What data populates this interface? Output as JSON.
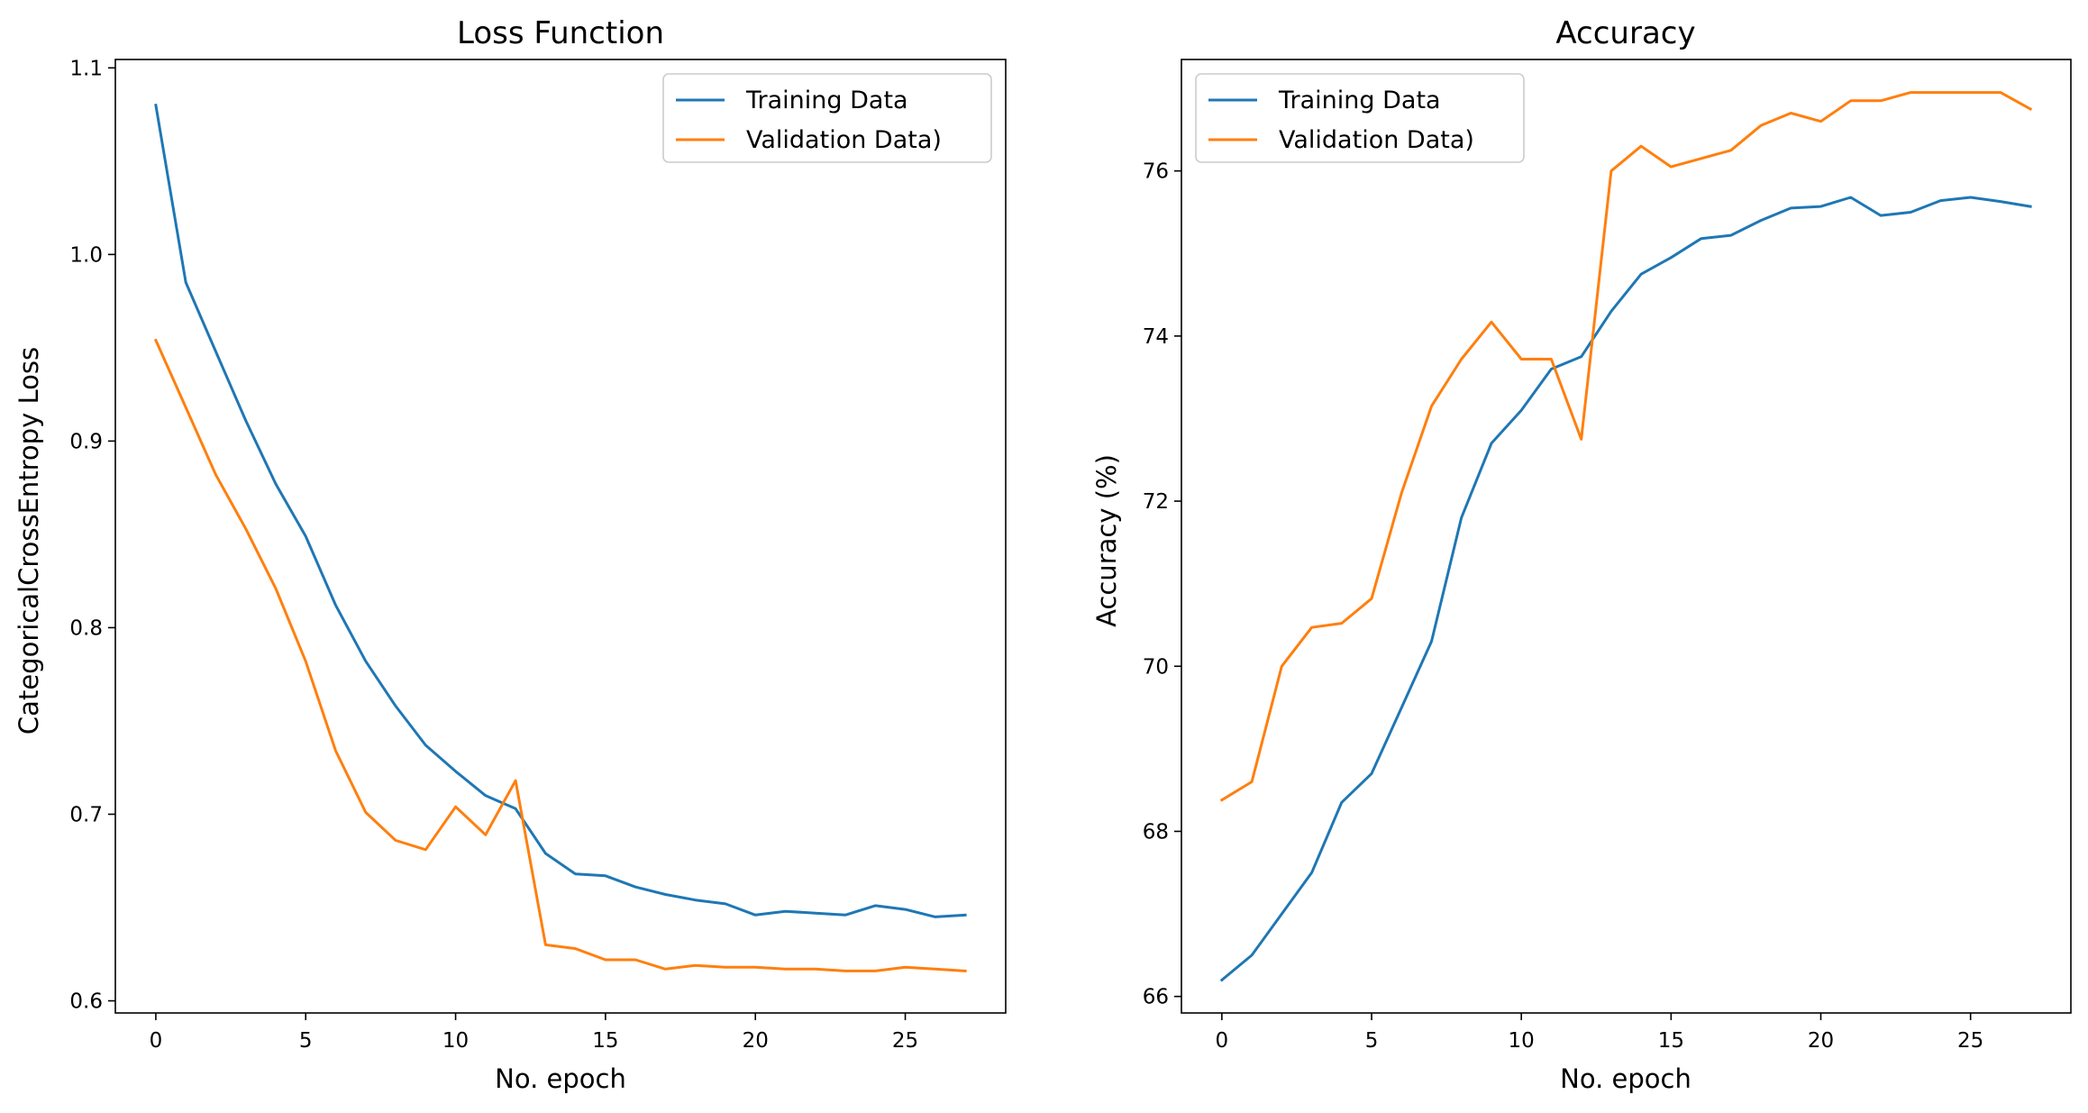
{
  "colors": {
    "training": "#1f77b4",
    "validation": "#ff7f0e"
  },
  "chart_data": [
    {
      "type": "line",
      "title": "Loss Function",
      "xlabel": "No. epoch",
      "ylabel": "CategoricalCrossEntropy Loss",
      "xlim": [
        -1.35,
        28.35
      ],
      "ylim": [
        0.5935,
        1.1045
      ],
      "xticks": [
        0,
        5,
        10,
        15,
        20,
        25
      ],
      "yticks": [
        0.6,
        0.7,
        0.8,
        0.9,
        1.0,
        1.1
      ],
      "ytick_labels": [
        "0.6",
        "0.7",
        "0.8",
        "0.9",
        "1.0",
        "1.1"
      ],
      "grid": false,
      "legend": "upper right",
      "x": [
        0,
        1,
        2,
        3,
        4,
        5,
        6,
        7,
        8,
        9,
        10,
        11,
        12,
        13,
        14,
        15,
        16,
        17,
        18,
        19,
        20,
        21,
        22,
        23,
        24,
        25,
        26,
        27
      ],
      "series": [
        {
          "name": "Training Data",
          "color": "#1f77b4",
          "values": [
            1.08,
            0.985,
            0.948,
            0.911,
            0.877,
            0.849,
            0.812,
            0.782,
            0.758,
            0.737,
            0.723,
            0.71,
            0.703,
            0.679,
            0.668,
            0.667,
            0.661,
            0.657,
            0.654,
            0.652,
            0.646,
            0.648,
            0.647,
            0.646,
            0.651,
            0.649,
            0.645,
            0.646
          ]
        },
        {
          "name": "Validation Data)",
          "color": "#ff7f0e",
          "values": [
            0.954,
            0.918,
            0.882,
            0.853,
            0.821,
            0.782,
            0.734,
            0.701,
            0.686,
            0.681,
            0.704,
            0.689,
            0.718,
            0.63,
            0.628,
            0.622,
            0.622,
            0.617,
            0.619,
            0.618,
            0.618,
            0.617,
            0.617,
            0.616,
            0.616,
            0.618,
            0.617,
            0.616
          ]
        }
      ]
    },
    {
      "type": "line",
      "title": "Accuracy",
      "xlabel": "No. epoch",
      "ylabel": "Accuracy (%)",
      "xlim": [
        -1.35,
        28.35
      ],
      "ylim": [
        65.8,
        77.35
      ],
      "xticks": [
        0,
        5,
        10,
        15,
        20,
        25
      ],
      "yticks": [
        66,
        68,
        70,
        72,
        74,
        76
      ],
      "ytick_labels": [
        "66",
        "68",
        "70",
        "72",
        "74",
        "76"
      ],
      "grid": false,
      "legend": "upper left",
      "x": [
        0,
        1,
        2,
        3,
        4,
        5,
        6,
        7,
        8,
        9,
        10,
        11,
        12,
        13,
        14,
        15,
        16,
        17,
        18,
        19,
        20,
        21,
        22,
        23,
        24,
        25,
        26,
        27
      ],
      "series": [
        {
          "name": "Training Data",
          "color": "#1f77b4",
          "values": [
            66.2,
            66.5,
            67.0,
            67.5,
            68.35,
            68.7,
            69.5,
            70.3,
            71.8,
            72.7,
            73.1,
            73.6,
            73.75,
            74.3,
            74.75,
            74.95,
            75.18,
            75.22,
            75.4,
            75.55,
            75.57,
            75.68,
            75.46,
            75.5,
            75.64,
            75.68,
            75.63,
            75.57
          ]
        },
        {
          "name": "Validation Data)",
          "color": "#ff7f0e",
          "values": [
            68.38,
            68.6,
            70.0,
            70.47,
            70.52,
            70.82,
            72.1,
            73.15,
            73.72,
            74.17,
            73.72,
            73.72,
            72.75,
            76.0,
            76.3,
            76.05,
            76.15,
            76.25,
            76.55,
            76.7,
            76.6,
            76.85,
            76.85,
            76.95,
            76.95,
            76.95,
            76.95,
            76.75
          ]
        }
      ]
    }
  ]
}
